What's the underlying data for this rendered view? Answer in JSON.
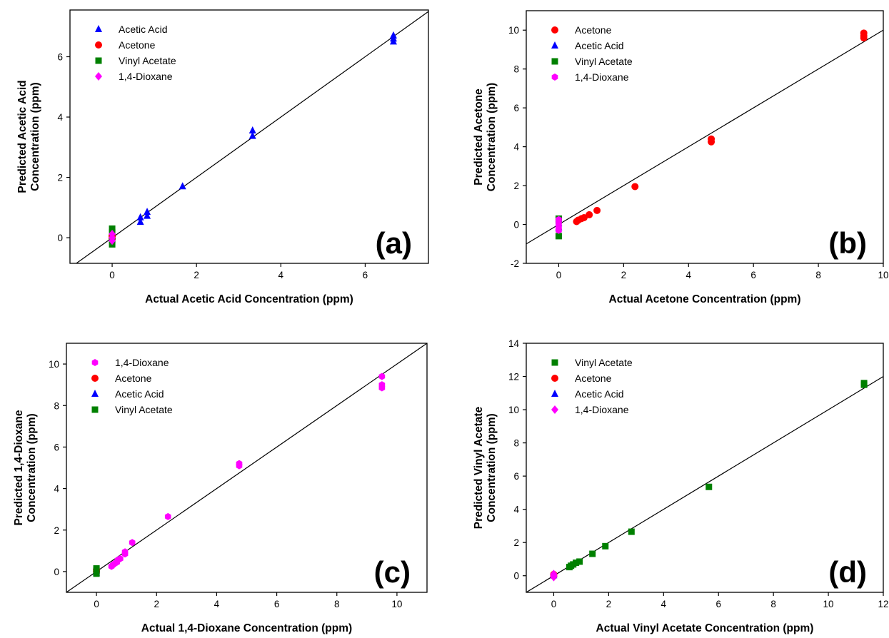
{
  "colors": {
    "acetic_acid": "#0000ff",
    "acetone": "#ff0000",
    "vinyl_acetate": "#008000",
    "dioxane": "#ff00ff"
  },
  "markers": {
    "acetic_acid": "triangle",
    "acetone": "circle",
    "vinyl_acetate": "square",
    "dioxane": "diamond"
  },
  "chart_data": [
    {
      "type": "scatter",
      "panel_label": "(a)",
      "xlabel": "Actual Acetic Acid Concentration (ppm)",
      "ylabel_lines": [
        "Predicted Acetic Acid",
        "Concentration (ppm)"
      ],
      "xlim": [
        -1,
        7.5
      ],
      "ylim": [
        -0.85,
        7.55
      ],
      "xticks": [
        0,
        2,
        4,
        6
      ],
      "yticks": [
        0,
        2,
        4,
        6
      ],
      "grid": false,
      "legend_position": "top-left",
      "identity_line": true,
      "series": [
        {
          "name": "Acetic Acid",
          "key": "acetic_acid",
          "marker": "triangle",
          "x": [
            6.67,
            6.67,
            6.67,
            3.33,
            3.33,
            1.67,
            0.83,
            0.83,
            0.67,
            0.67
          ],
          "y": [
            6.5,
            6.6,
            6.7,
            3.37,
            3.55,
            1.7,
            0.85,
            0.72,
            0.67,
            0.52
          ]
        },
        {
          "name": "Acetone",
          "key": "acetone",
          "marker": "circle",
          "x": [
            0,
            0,
            0
          ],
          "y": [
            0.08,
            -0.03,
            0.03
          ]
        },
        {
          "name": "Vinyl Acetate",
          "key": "vinyl_acetate",
          "marker": "square",
          "x": [
            0,
            0,
            0,
            0
          ],
          "y": [
            0.3,
            0.18,
            -0.08,
            -0.22
          ]
        },
        {
          "name": "1,4-Dioxane",
          "key": "dioxane",
          "marker": "diamond",
          "x": [
            0,
            0,
            0
          ],
          "y": [
            0.12,
            0.0,
            -0.1
          ]
        }
      ]
    },
    {
      "type": "scatter",
      "panel_label": "(b)",
      "xlabel": "Actual Acetone Concentration (ppm)",
      "ylabel_lines": [
        "Predicted Acetone",
        "Concentration (ppm)"
      ],
      "xlim": [
        -1,
        10
      ],
      "ylim": [
        -2,
        11
      ],
      "xticks": [
        0,
        2,
        4,
        6,
        8,
        10
      ],
      "yticks": [
        -2,
        0,
        2,
        4,
        6,
        8,
        10
      ],
      "grid": false,
      "legend_position": "top-left",
      "identity_line": true,
      "series": [
        {
          "name": "Acetone",
          "key": "acetone",
          "marker": "circle",
          "x": [
            9.4,
            9.4,
            9.4,
            4.7,
            4.7,
            2.35,
            1.18,
            0.94,
            0.78,
            0.7,
            0.6,
            0.55
          ],
          "y": [
            9.85,
            9.7,
            9.6,
            4.4,
            4.25,
            1.95,
            0.72,
            0.5,
            0.35,
            0.3,
            0.22,
            0.15
          ]
        },
        {
          "name": "Acetic Acid",
          "key": "acetic_acid",
          "marker": "triangle",
          "x": [
            0,
            0
          ],
          "y": [
            0.05,
            -0.15
          ]
        },
        {
          "name": "Vinyl Acetate",
          "key": "vinyl_acetate",
          "marker": "square",
          "x": [
            0,
            0,
            0
          ],
          "y": [
            0.3,
            0.2,
            -0.6
          ]
        },
        {
          "name": "1,4-Dioxane",
          "key": "dioxane",
          "marker": "hexagon",
          "x": [
            0,
            0,
            0,
            0,
            0
          ],
          "y": [
            0.25,
            0.15,
            0.0,
            -0.15,
            -0.3
          ]
        }
      ]
    },
    {
      "type": "scatter",
      "panel_label": "(c)",
      "xlabel": "Actual 1,4-Dioxane Concentration (ppm)",
      "ylabel_lines": [
        "Predicted 1,4-Dioxane",
        "Concentration (ppm)"
      ],
      "xlim": [
        -1,
        11
      ],
      "ylim": [
        -1,
        11
      ],
      "xticks": [
        0,
        2,
        4,
        6,
        8,
        10
      ],
      "yticks": [
        0,
        2,
        4,
        6,
        8,
        10
      ],
      "grid": false,
      "legend_position": "top-left",
      "identity_line": true,
      "series": [
        {
          "name": "1,4-Dioxane",
          "key": "dioxane",
          "marker": "hexagon",
          "x": [
            9.5,
            9.5,
            9.5,
            4.75,
            4.75,
            2.38,
            1.19,
            0.95,
            0.95,
            0.79,
            0.71,
            0.68,
            0.6,
            0.55,
            0.5
          ],
          "y": [
            9.4,
            9.0,
            8.85,
            5.2,
            5.1,
            2.65,
            1.4,
            0.95,
            0.85,
            0.62,
            0.55,
            0.45,
            0.38,
            0.32,
            0.25
          ]
        },
        {
          "name": "Acetone",
          "key": "acetone",
          "marker": "circle",
          "x": [
            0,
            0
          ],
          "y": [
            0.1,
            0.0
          ]
        },
        {
          "name": "Acetic Acid",
          "key": "acetic_acid",
          "marker": "triangle",
          "x": [
            0,
            0
          ],
          "y": [
            0.05,
            -0.05
          ]
        },
        {
          "name": "Vinyl Acetate",
          "key": "vinyl_acetate",
          "marker": "square",
          "x": [
            0,
            0,
            0
          ],
          "y": [
            0.15,
            0.05,
            -0.1
          ]
        }
      ]
    },
    {
      "type": "scatter",
      "panel_label": "(d)",
      "xlabel": "Actual Vinyl Acetate Concentration (ppm)",
      "ylabel_lines": [
        "Predicted Vinyl Acetate",
        "Concentration (ppm)"
      ],
      "xlim": [
        -1,
        12
      ],
      "ylim": [
        -1,
        14
      ],
      "xticks": [
        0,
        2,
        4,
        6,
        8,
        10,
        12
      ],
      "yticks": [
        0,
        2,
        4,
        6,
        8,
        10,
        12,
        14
      ],
      "grid": false,
      "legend_position": "top-left",
      "identity_line": true,
      "series": [
        {
          "name": "Vinyl Acetate",
          "key": "vinyl_acetate",
          "marker": "square",
          "x": [
            11.3,
            11.3,
            5.65,
            2.83,
            1.88,
            1.41,
            0.94,
            0.81,
            0.71,
            0.63,
            0.57
          ],
          "y": [
            11.6,
            11.5,
            5.35,
            2.65,
            1.78,
            1.32,
            0.85,
            0.78,
            0.68,
            0.6,
            0.52
          ]
        },
        {
          "name": "Acetone",
          "key": "acetone",
          "marker": "circle",
          "x": [
            0,
            0
          ],
          "y": [
            0.08,
            -0.02
          ]
        },
        {
          "name": "Acetic Acid",
          "key": "acetic_acid",
          "marker": "triangle",
          "x": [
            0
          ],
          "y": [
            0.02
          ]
        },
        {
          "name": "1,4-Dioxane",
          "key": "dioxane",
          "marker": "diamond",
          "x": [
            0,
            0,
            0
          ],
          "y": [
            0.1,
            0.0,
            -0.08
          ]
        }
      ]
    }
  ]
}
